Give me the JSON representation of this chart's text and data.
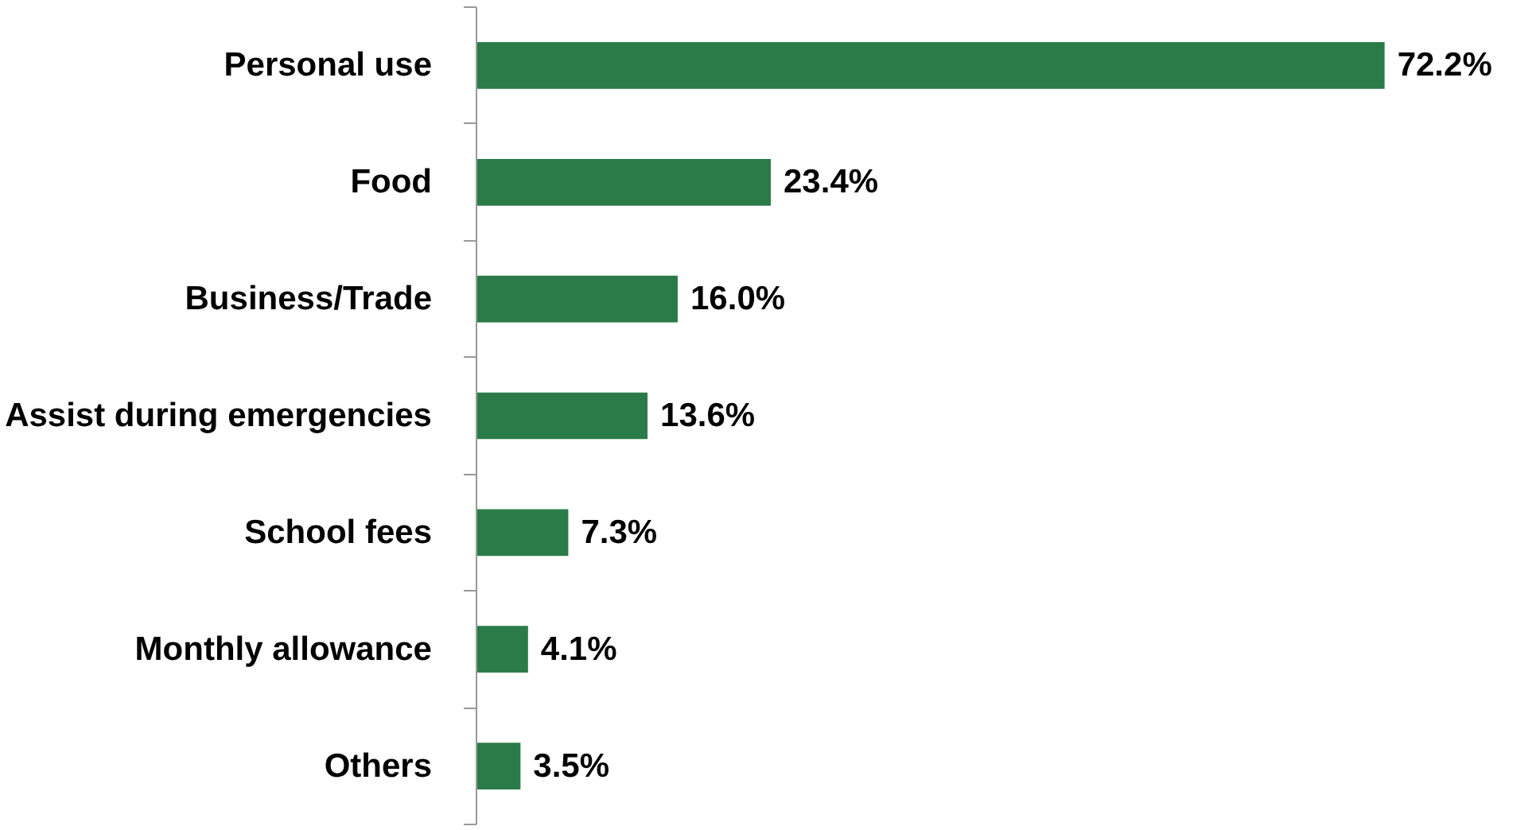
{
  "chart_data": {
    "type": "bar",
    "orientation": "horizontal",
    "data_labels": true,
    "color": "#2b7b48",
    "categories": [
      "Personal use",
      "Food",
      "Business/Trade",
      "Assist during emergencies",
      "School fees",
      "Monthly allowance",
      "Others"
    ],
    "values": [
      72.2,
      23.4,
      16.0,
      13.6,
      7.3,
      4.1,
      3.5
    ],
    "value_labels": [
      "72.2%",
      "23.4%",
      "16.0%",
      "13.6%",
      "7.3%",
      "4.1%",
      "3.5%"
    ],
    "grid": false
  }
}
